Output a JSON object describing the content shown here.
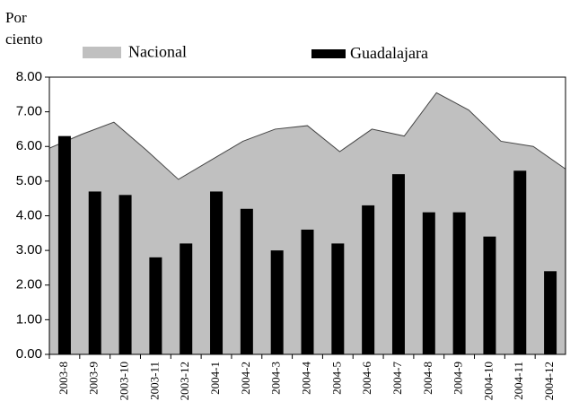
{
  "chart_data": {
    "type": "bar",
    "y_label": "Por ciento",
    "categories": [
      "2003-8",
      "2003-9",
      "2003-10",
      "2003-11",
      "2003-12",
      "2004-1",
      "2004-2",
      "2004-3",
      "2004-4",
      "2004-5",
      "2004-6",
      "2004-7",
      "2004-8",
      "2004-9",
      "2004-10",
      "2004-11",
      "2004-12"
    ],
    "series": [
      {
        "name": "Nacional",
        "type": "area",
        "color": "#c0c0c0",
        "values": [
          5.95,
          6.35,
          6.7,
          5.9,
          5.05,
          5.6,
          6.15,
          6.5,
          6.6,
          5.85,
          6.5,
          6.3,
          7.55,
          7.05,
          6.15,
          6.0,
          5.35
        ]
      },
      {
        "name": "Guadalajara",
        "type": "bar",
        "color": "#000000",
        "values": [
          6.3,
          4.7,
          4.6,
          2.8,
          3.2,
          4.7,
          4.2,
          3.0,
          3.6,
          3.2,
          4.3,
          5.2,
          4.1,
          4.1,
          3.4,
          5.3,
          2.4
        ]
      }
    ],
    "ylim": [
      0,
      8
    ],
    "yticks": [
      {
        "value": 0,
        "label": "0.00"
      },
      {
        "value": 1,
        "label": "1.00"
      },
      {
        "value": 2,
        "label": "2.00"
      },
      {
        "value": 3,
        "label": "3.00"
      },
      {
        "value": 4,
        "label": "4.00"
      },
      {
        "value": 5,
        "label": "5.00"
      },
      {
        "value": 6,
        "label": "6.00"
      },
      {
        "value": 7,
        "label": "7.00"
      },
      {
        "value": 8,
        "label": "8.00"
      }
    ]
  }
}
